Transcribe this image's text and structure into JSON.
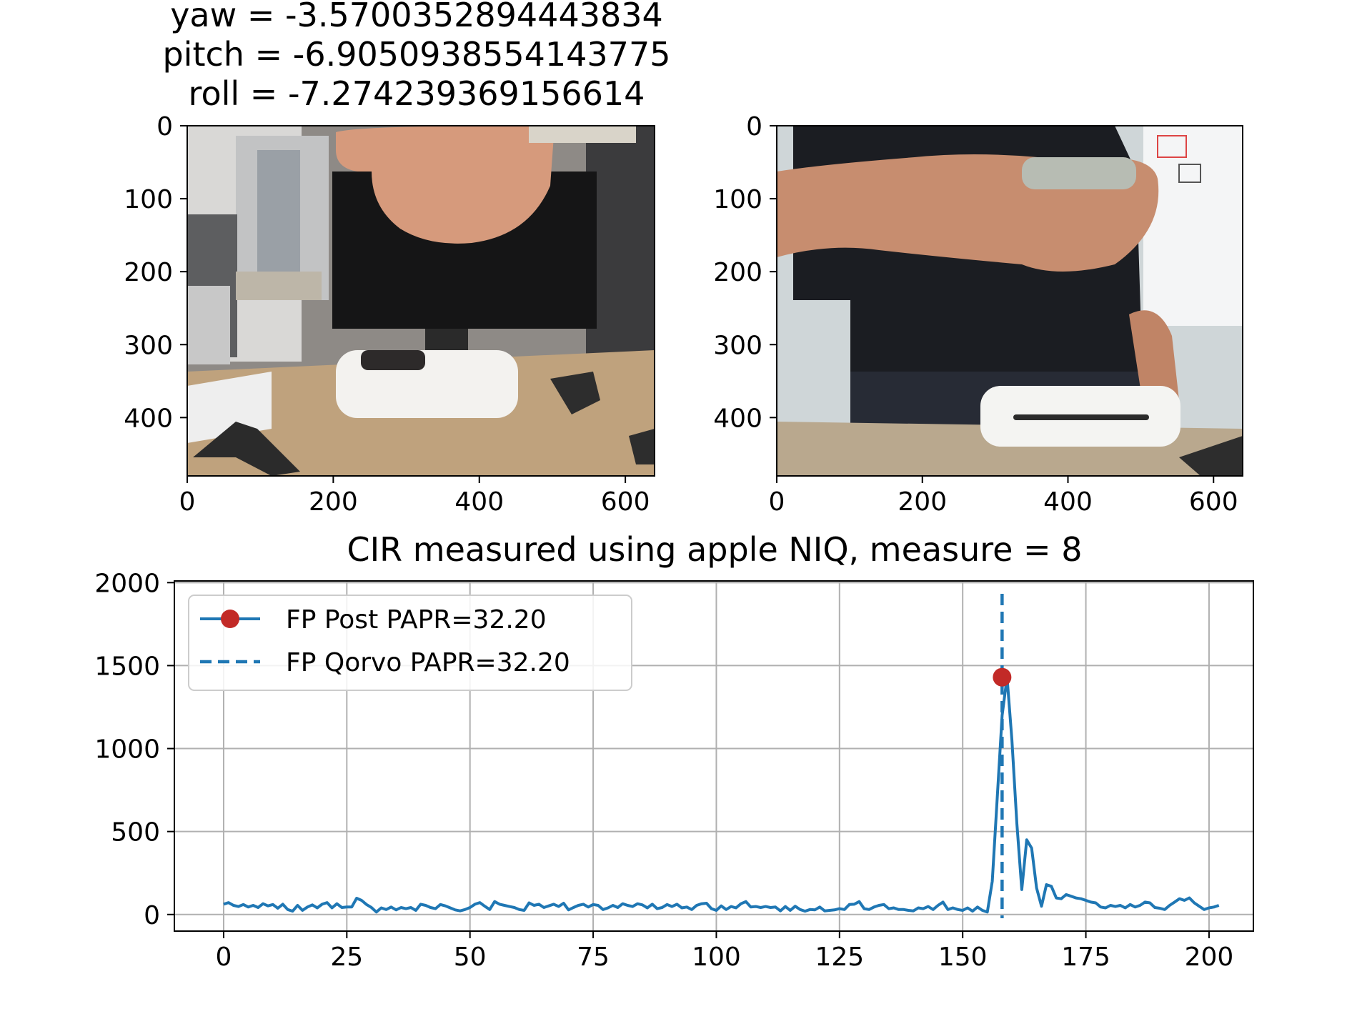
{
  "figure": {
    "suptitle_lines": [
      "yaw = -3.5700352894443834",
      "pitch = -6.9050938554143775",
      "roll = -7.274239369156614"
    ]
  },
  "images": [
    {
      "description_icon": "photo-left",
      "x_ticks": [
        0,
        200,
        400,
        600
      ],
      "y_ticks": [
        0,
        100,
        200,
        300,
        400
      ],
      "xlim": [
        0,
        640
      ],
      "ylim": [
        480,
        0
      ]
    },
    {
      "description_icon": "photo-right",
      "x_ticks": [
        0,
        200,
        400,
        600
      ],
      "y_ticks": [
        0,
        100,
        200,
        300,
        400
      ],
      "xlim": [
        0,
        640
      ],
      "ylim": [
        480,
        0
      ]
    }
  ],
  "chart_data": {
    "type": "line",
    "title": "CIR measured using apple NIQ, measure = 8",
    "xlabel": "",
    "ylabel": "",
    "xlim": [
      -10,
      209
    ],
    "ylim": [
      -100,
      2010
    ],
    "x_ticks": [
      0,
      25,
      50,
      75,
      100,
      125,
      150,
      175,
      200
    ],
    "y_ticks": [
      0,
      500,
      1000,
      1500,
      2000
    ],
    "grid": true,
    "legend_position": "upper-left",
    "series": [
      {
        "name": "FP Post PAPR=32.20",
        "color": "#1f77b4",
        "marker_color": "#c22a27",
        "values": [
          62,
          72,
          55,
          48,
          60,
          45,
          55,
          42,
          65,
          52,
          60,
          38,
          62,
          30,
          20,
          55,
          25,
          45,
          58,
          40,
          62,
          72,
          40,
          65,
          42,
          45,
          45,
          98,
          85,
          60,
          42,
          15,
          40,
          30,
          45,
          28,
          42,
          35,
          42,
          25,
          62,
          55,
          42,
          35,
          60,
          52,
          40,
          28,
          22,
          30,
          42,
          62,
          72,
          50,
          30,
          78,
          62,
          55,
          48,
          42,
          30,
          25,
          70,
          55,
          62,
          42,
          52,
          62,
          48,
          68,
          28,
          42,
          55,
          62,
          45,
          60,
          55,
          30,
          40,
          55,
          42,
          65,
          55,
          48,
          65,
          58,
          40,
          62,
          35,
          42,
          60,
          48,
          62,
          40,
          45,
          30,
          55,
          65,
          68,
          35,
          25,
          52,
          30,
          48,
          40,
          65,
          78,
          45,
          48,
          42,
          48,
          42,
          45,
          22,
          48,
          25,
          50,
          30,
          20,
          30,
          28,
          45,
          22,
          25,
          28,
          35,
          30,
          60,
          62,
          78,
          35,
          30,
          45,
          55,
          60,
          35,
          40,
          30,
          30,
          25,
          22,
          40,
          35,
          48,
          30,
          55,
          75,
          30,
          40,
          30,
          25,
          40,
          20,
          45,
          25,
          15,
          200,
          700,
          1200,
          1430,
          1050,
          550,
          150,
          450,
          400,
          160,
          50,
          180,
          170,
          100,
          95,
          120,
          110,
          100,
          95,
          85,
          75,
          70,
          45,
          40,
          55,
          48,
          55,
          40,
          60,
          45,
          55,
          75,
          70,
          42,
          38,
          30,
          55,
          75,
          95,
          85,
          100,
          70,
          50,
          30,
          40,
          45,
          55
        ]
      },
      {
        "name": "FP Qorvo PAPR=32.20",
        "color": "#1f77b4",
        "style": "dashed",
        "x": 158
      }
    ],
    "first_path_marker": {
      "x": 158,
      "y": 1430
    }
  }
}
